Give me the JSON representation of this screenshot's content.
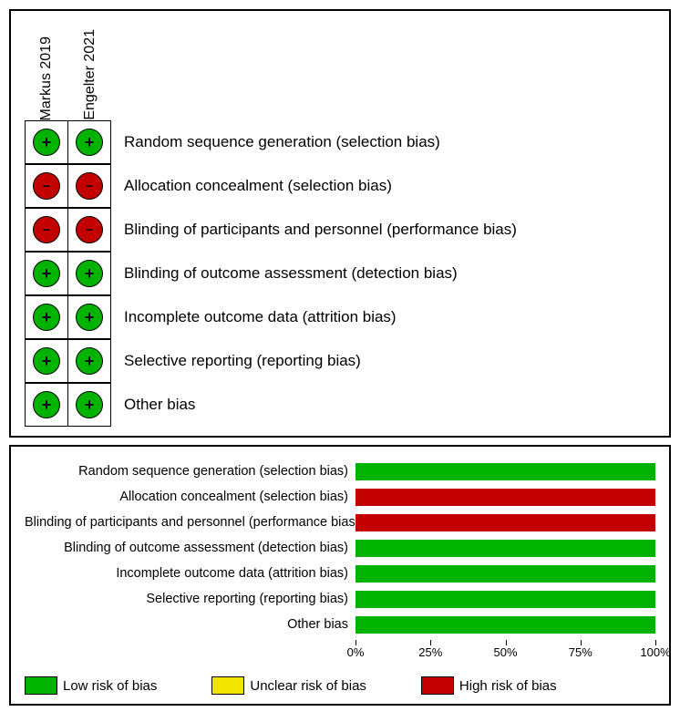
{
  "colors": {
    "low": "#00b300",
    "unclear": "#f2e600",
    "high": "#c20000",
    "border": "#000000",
    "bg": "#ffffff"
  },
  "studies": [
    "Markus 2019",
    "Engelter 2021"
  ],
  "domains": [
    "Random sequence generation (selection bias)",
    "Allocation concealment (selection bias)",
    "Blinding of participants and personnel (performance bias)",
    "Blinding of outcome assessment (detection bias)",
    "Incomplete outcome data (attrition bias)",
    "Selective reporting (reporting bias)",
    "Other bias"
  ],
  "judgments": [
    [
      "low",
      "low"
    ],
    [
      "high",
      "high"
    ],
    [
      "high",
      "high"
    ],
    [
      "low",
      "low"
    ],
    [
      "low",
      "low"
    ],
    [
      "low",
      "low"
    ],
    [
      "low",
      "low"
    ]
  ],
  "symbols": {
    "low": "+",
    "unclear": "?",
    "high": "−"
  },
  "summary_bars": [
    {
      "low": 100,
      "unclear": 0,
      "high": 0
    },
    {
      "low": 0,
      "unclear": 0,
      "high": 100
    },
    {
      "low": 0,
      "unclear": 0,
      "high": 100
    },
    {
      "low": 100,
      "unclear": 0,
      "high": 0
    },
    {
      "low": 100,
      "unclear": 0,
      "high": 0
    },
    {
      "low": 100,
      "unclear": 0,
      "high": 0
    },
    {
      "low": 100,
      "unclear": 0,
      "high": 0
    }
  ],
  "axis": {
    "min": 0,
    "max": 100,
    "ticks": [
      0,
      25,
      50,
      75,
      100
    ],
    "suffix": "%"
  },
  "legend": [
    {
      "key": "low",
      "label": "Low risk of bias"
    },
    {
      "key": "unclear",
      "label": "Unclear risk of bias"
    },
    {
      "key": "high",
      "label": "High risk of bias"
    }
  ],
  "typography": {
    "domain_fontsize": 17,
    "barlabel_fontsize": 14.5,
    "axis_fontsize": 13,
    "legend_fontsize": 15,
    "study_fontsize": 16
  }
}
